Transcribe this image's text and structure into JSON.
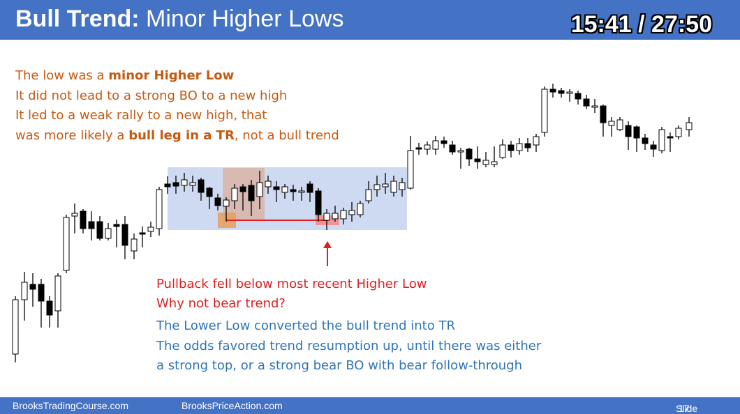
{
  "header": {
    "title_bold": "Bull Trend:",
    "title_rest": " Minor Higher Lows",
    "timer": "15:41 / 27:50",
    "colors": {
      "bar": "#4472c4",
      "text": "#ffffff"
    }
  },
  "notes": {
    "orange": {
      "line1_pre": "The low was a ",
      "line1_bold": "minor Higher Low",
      "line2": "It did not lead to a strong BO to a new high",
      "line3": "It led to a weak rally to a new high, that",
      "line4_pre": "was more likely a ",
      "line4_bold": "bull leg in a TR",
      "line4_post": ", not a bull trend",
      "color": "#c55a11"
    },
    "red": {
      "line1": "Pullback fell below most recent Higher Low",
      "line2": "Why not bear trend?",
      "color": "#e02020"
    },
    "blue": {
      "line1": "The Lower Low converted the bull trend into TR",
      "line2": "The odds favored trend resumption up, until there was either",
      "line3": "a strong top, or a strong bear BO with bear follow-through",
      "color": "#2e75b6"
    }
  },
  "footer": {
    "left": "BrooksTradingCourse.com",
    "center": "BrooksPriceAction.com",
    "slide_label": "Slide",
    "slide_number": "17"
  },
  "chart_icons": {
    "arrow": "up-arrow-icon"
  }
}
